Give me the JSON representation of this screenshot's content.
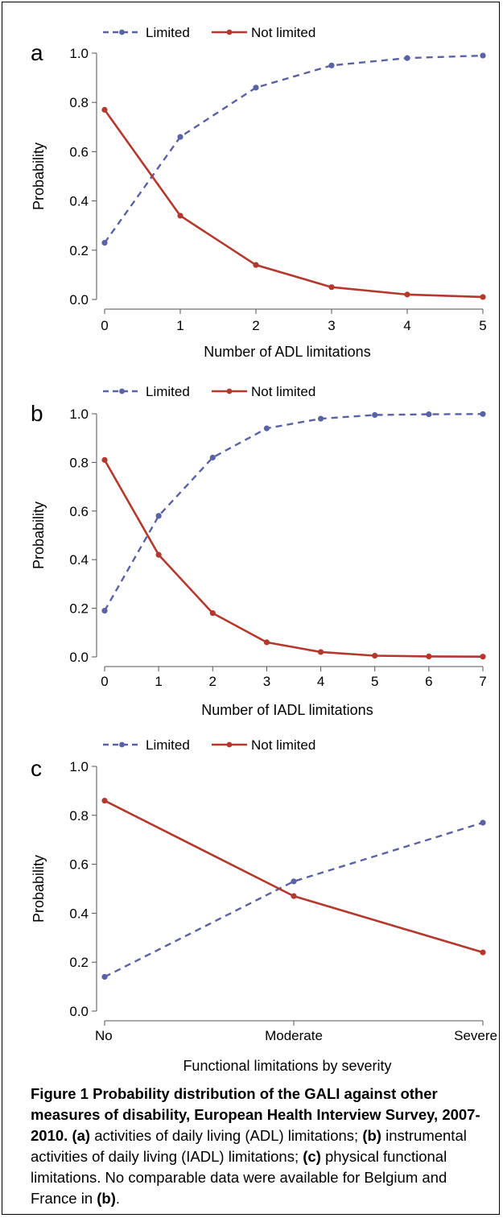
{
  "colors": {
    "limited": "#5a62a6",
    "not_limited": "#b5382d"
  },
  "chart_data": [
    {
      "type": "line",
      "panel_label": "a",
      "x": [
        0,
        1,
        2,
        3,
        4,
        5
      ],
      "x_tick_labels": [
        "0",
        "1",
        "2",
        "3",
        "4",
        "5"
      ],
      "xlabel": "Number of ADL limitations",
      "ylabel": "Probability",
      "ylim": [
        0,
        1
      ],
      "y_tick_labels": [
        "0.0",
        "0.2",
        "0.4",
        "0.6",
        "0.8",
        "1.0"
      ],
      "grid": false,
      "legend_position": "top",
      "series": [
        {
          "name": "Limited",
          "style": "dashed",
          "values": [
            0.23,
            0.66,
            0.86,
            0.95,
            0.98,
            0.99
          ]
        },
        {
          "name": "Not limited",
          "style": "solid",
          "values": [
            0.77,
            0.34,
            0.14,
            0.05,
            0.02,
            0.01
          ]
        }
      ]
    },
    {
      "type": "line",
      "panel_label": "b",
      "x": [
        0,
        1,
        2,
        3,
        4,
        5,
        6,
        7
      ],
      "x_tick_labels": [
        "0",
        "1",
        "2",
        "3",
        "4",
        "5",
        "6",
        "7"
      ],
      "xlabel": "Number of IADL limitations",
      "ylabel": "Probability",
      "ylim": [
        0,
        1
      ],
      "y_tick_labels": [
        "0.0",
        "0.2",
        "0.4",
        "0.6",
        "0.8",
        "1.0"
      ],
      "grid": false,
      "legend_position": "top",
      "series": [
        {
          "name": "Limited",
          "style": "dashed",
          "values": [
            0.19,
            0.58,
            0.82,
            0.94,
            0.98,
            0.995,
            0.998,
            0.999
          ]
        },
        {
          "name": "Not limited",
          "style": "solid",
          "values": [
            0.81,
            0.42,
            0.18,
            0.06,
            0.02,
            0.005,
            0.002,
            0.001
          ]
        }
      ]
    },
    {
      "type": "line",
      "panel_label": "c",
      "x": [
        0,
        1,
        2
      ],
      "x_tick_labels": [
        "No",
        "Moderate",
        "Severe"
      ],
      "xlabel": "Functional limitations by severity",
      "ylabel": "Probability",
      "ylim": [
        0,
        1
      ],
      "y_tick_labels": [
        "0.0",
        "0.2",
        "0.4",
        "0.6",
        "0.8",
        "1.0"
      ],
      "grid": false,
      "legend_position": "top",
      "series": [
        {
          "name": "Limited",
          "style": "dashed",
          "values": [
            0.14,
            0.53,
            0.77
          ]
        },
        {
          "name": "Not limited",
          "style": "solid",
          "values": [
            0.86,
            0.47,
            0.24
          ]
        }
      ]
    }
  ],
  "caption": {
    "title": "Figure 1 Probability distribution of the GALI against other measures of disability, European Health Interview Survey, 2007-2010.",
    "parts": [
      {
        "bold": "(a)",
        "text": " activities of daily living (ADL) limitations; "
      },
      {
        "bold": "(b)",
        "text": " instrumental activities of daily living (IADL) limitations; "
      },
      {
        "bold": "(c)",
        "text": " physical functional limitations. No comparable data were available for Belgium and France in "
      },
      {
        "bold": "(b)",
        "text": "."
      }
    ]
  }
}
